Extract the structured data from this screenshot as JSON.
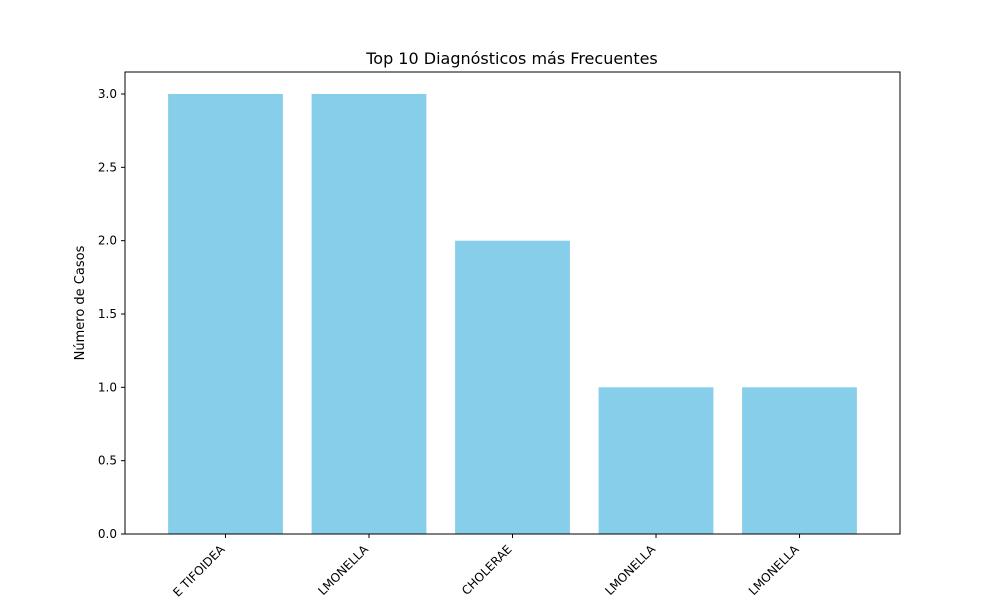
{
  "chart_data": {
    "type": "bar",
    "title": "Top 10 Diagnósticos más Frecuentes",
    "xlabel": "",
    "ylabel": "Número de Casos",
    "categories": [
      "E TIFOIDEA",
      "LMONELLA",
      "CHOLERAE",
      "LMONELLA",
      "LMONELLA"
    ],
    "values": [
      3,
      3,
      2,
      1,
      1
    ],
    "ylim": [
      0,
      3.15
    ],
    "yticks": [
      "0.0",
      "0.5",
      "1.0",
      "1.5",
      "2.0",
      "2.5",
      "3.0"
    ],
    "grid": false,
    "legend": "none",
    "colors": {
      "bar": "#87CEEB",
      "axis": "#000000"
    }
  }
}
